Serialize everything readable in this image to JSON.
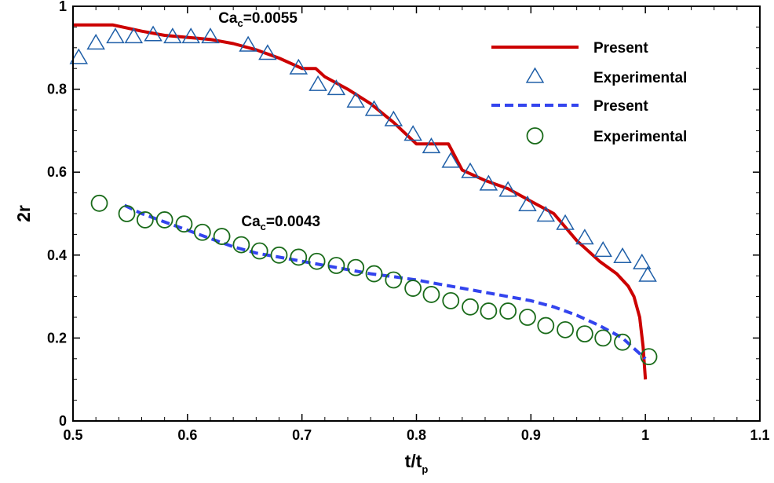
{
  "chart_data": {
    "type": "line",
    "xlabel": "t/t",
    "xlabel_sub": "p",
    "ylabel": "2r",
    "xlim": [
      0.5,
      1.1
    ],
    "ylim": [
      0,
      1
    ],
    "xticks": [
      0.5,
      0.6,
      0.7,
      0.8,
      0.9,
      1,
      1.1
    ],
    "xtick_labels": [
      "0.5",
      "0.6",
      "0.7",
      "0.8",
      "0.9",
      "1",
      "1.1"
    ],
    "yticks": [
      0,
      0.2,
      0.4,
      0.6,
      0.8,
      1
    ],
    "ytick_labels": [
      "0",
      "0.2",
      "0.4",
      "0.6",
      "0.8",
      "1"
    ],
    "grid": false,
    "legend_position": "top-right",
    "annotations": [
      {
        "prefix": "Ca",
        "sub": "c",
        "suffix": "=0.0055",
        "x": 0.627,
        "y": 0.96
      },
      {
        "prefix": "Ca",
        "sub": "c",
        "suffix": "=0.0043",
        "x": 0.647,
        "y": 0.47
      }
    ],
    "series": [
      {
        "name": "Present",
        "kind": "line",
        "color": "#cc0000",
        "dash": "solid",
        "x": [
          0.5,
          0.535,
          0.56,
          0.58,
          0.6,
          0.62,
          0.64,
          0.66,
          0.68,
          0.7,
          0.712,
          0.72,
          0.74,
          0.76,
          0.78,
          0.8,
          0.828,
          0.84,
          0.86,
          0.88,
          0.9,
          0.92,
          0.94,
          0.96,
          0.975,
          0.985,
          0.99,
          0.995,
          0.998,
          1.0
        ],
        "y": [
          0.955,
          0.955,
          0.94,
          0.93,
          0.925,
          0.92,
          0.91,
          0.895,
          0.875,
          0.85,
          0.85,
          0.83,
          0.8,
          0.765,
          0.72,
          0.668,
          0.668,
          0.605,
          0.58,
          0.56,
          0.53,
          0.5,
          0.435,
          0.385,
          0.355,
          0.325,
          0.3,
          0.25,
          0.18,
          0.1
        ]
      },
      {
        "name": "Experimental",
        "kind": "marker",
        "marker": "triangle",
        "color": "#1f5fa8",
        "x": [
          0.505,
          0.52,
          0.537,
          0.553,
          0.57,
          0.587,
          0.603,
          0.62,
          0.653,
          0.67,
          0.697,
          0.714,
          0.73,
          0.747,
          0.763,
          0.78,
          0.797,
          0.813,
          0.83,
          0.847,
          0.863,
          0.88,
          0.897,
          0.913,
          0.93,
          0.947,
          0.963,
          0.98,
          0.997,
          1.002
        ],
        "y": [
          0.875,
          0.91,
          0.925,
          0.925,
          0.93,
          0.925,
          0.925,
          0.925,
          0.905,
          0.885,
          0.85,
          0.81,
          0.8,
          0.77,
          0.75,
          0.725,
          0.69,
          0.66,
          0.625,
          0.6,
          0.57,
          0.555,
          0.52,
          0.495,
          0.475,
          0.44,
          0.41,
          0.395,
          0.38,
          0.35
        ]
      },
      {
        "name": "Present",
        "kind": "line",
        "color": "#3344ee",
        "dash": "dashed",
        "x": [
          0.545,
          0.56,
          0.58,
          0.6,
          0.62,
          0.64,
          0.66,
          0.68,
          0.7,
          0.72,
          0.74,
          0.76,
          0.78,
          0.8,
          0.82,
          0.84,
          0.86,
          0.88,
          0.9,
          0.92,
          0.94,
          0.96,
          0.98,
          0.99,
          1.0
        ],
        "y": [
          0.52,
          0.5,
          0.48,
          0.46,
          0.44,
          0.42,
          0.405,
          0.395,
          0.385,
          0.375,
          0.365,
          0.355,
          0.348,
          0.34,
          0.33,
          0.32,
          0.31,
          0.3,
          0.29,
          0.275,
          0.255,
          0.23,
          0.2,
          0.175,
          0.15
        ]
      },
      {
        "name": "Experimental",
        "kind": "marker",
        "marker": "circle",
        "color": "#1a6b1a",
        "x": [
          0.523,
          0.547,
          0.563,
          0.58,
          0.597,
          0.613,
          0.63,
          0.647,
          0.663,
          0.68,
          0.697,
          0.713,
          0.73,
          0.747,
          0.763,
          0.78,
          0.797,
          0.813,
          0.83,
          0.847,
          0.863,
          0.88,
          0.897,
          0.913,
          0.93,
          0.947,
          0.963,
          0.98,
          1.003
        ],
        "y": [
          0.525,
          0.5,
          0.485,
          0.485,
          0.475,
          0.455,
          0.445,
          0.425,
          0.41,
          0.4,
          0.395,
          0.385,
          0.375,
          0.37,
          0.355,
          0.34,
          0.32,
          0.305,
          0.29,
          0.275,
          0.265,
          0.265,
          0.25,
          0.23,
          0.22,
          0.21,
          0.2,
          0.19,
          0.155
        ]
      }
    ]
  }
}
